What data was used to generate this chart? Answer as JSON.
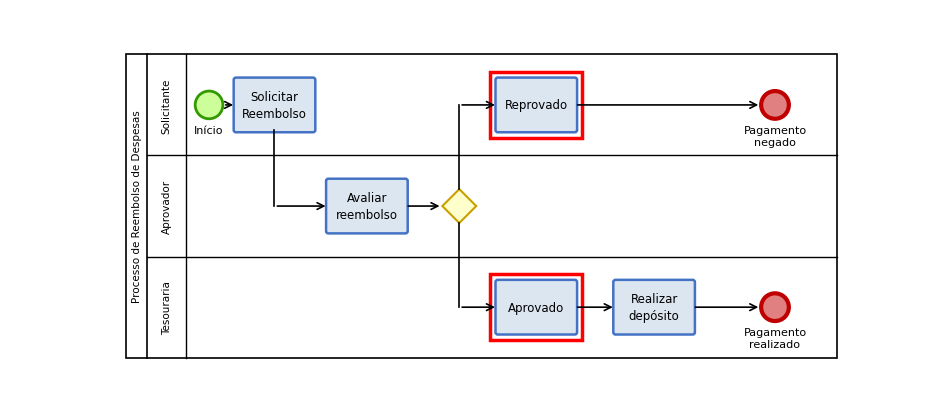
{
  "pool_label": "Processo de Reembolso de Despesas",
  "lanes": [
    "Solicitante",
    "Aprovador",
    "Tesouraria"
  ],
  "bg_color": "#ffffff",
  "task_fill": "#dce6f1",
  "task_border": "#4472c4",
  "task_text_color": "#000000",
  "start_fill": "#ccff99",
  "start_border": "#339900",
  "end_outer_color": "#c00000",
  "end_inner_fill": "#e08080",
  "gateway_fill": "#ffffcc",
  "gateway_border": "#c8a000",
  "red_box_color": "#ff0000",
  "arrow_color": "#000000",
  "pool_border": "#000000",
  "lane_border": "#000000"
}
